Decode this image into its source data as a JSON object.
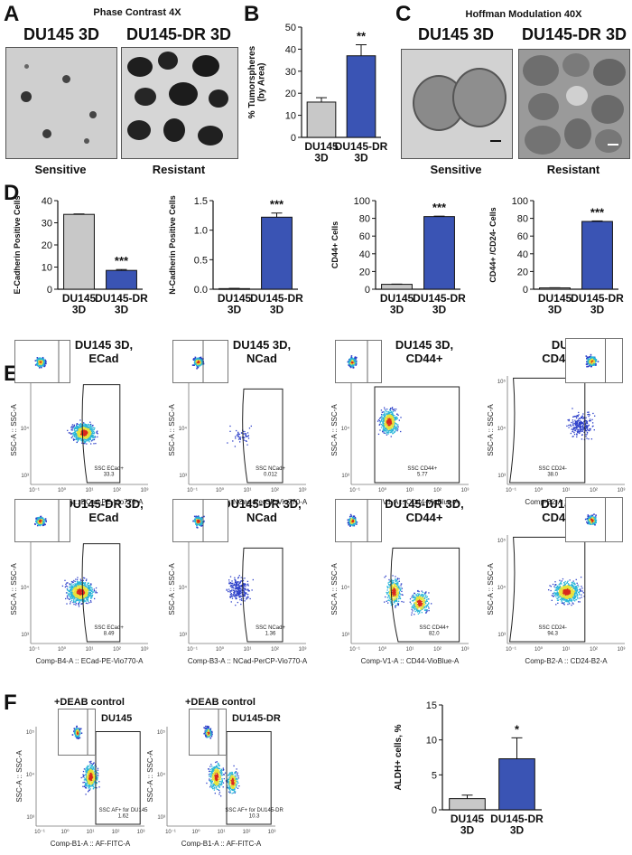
{
  "colors": {
    "gray_bar": "#c8c8c8",
    "blue_bar": "#3a54b4",
    "dot_blue": "#2c3fc9",
    "dot_cyan": "#28b5d8",
    "dot_yellow": "#e8e23a",
    "dot_red": "#d9281e"
  },
  "panelA": {
    "letter": "A",
    "title": "Phase Contrast 4X",
    "left_label": "DU145 3D",
    "right_label": "DU145-DR 3D",
    "left_caption": "Sensitive",
    "right_caption": "Resistant"
  },
  "panelB": {
    "letter": "B",
    "ylabel": "% Tumorspheres\n(by Area)",
    "sig": "**"
  },
  "panelC": {
    "letter": "C",
    "title": "Hoffman Modulation 40X",
    "left_label": "DU145 3D",
    "right_label": "DU145-DR 3D",
    "left_caption": "Sensitive",
    "right_caption": "Resistant"
  },
  "panelD": {
    "letter": "D"
  },
  "panelE": {
    "letter": "E",
    "row1": [
      {
        "title": "DU145 3D,\nECad",
        "gate": "SSC ECad+\n33.3",
        "xlabel": "Comp-B4-A :: ECad-PE-Vio770-A",
        "ylabel": "SSC-A :: SSC-A"
      },
      {
        "title": "DU145 3D,\nNCad",
        "gate": "SSC NCad+\n0.012",
        "xlabel": "Comp-B3-A :: NCad-PerCP-Vio770-A",
        "ylabel": "SSC-A :: SSC-A"
      },
      {
        "title": "DU145 3D,\nCD44+",
        "gate": "SSC CD44+\n5.77",
        "xlabel": "Comp-V1-A :: CD44-VioBlue-A",
        "ylabel": "SSC-A :: SSC-A"
      },
      {
        "title": "DU145 3D,\nCD44+/ CD24-",
        "gate": "SSC CD24-\n38.0",
        "xlabel": "Comp-B2-A :: CD24-B2-A",
        "ylabel": "SSC-A :: SSC-A"
      }
    ],
    "row2": [
      {
        "title": "DU145-DR 3D,\nECad",
        "gate": "SSC ECad+\n8.49",
        "xlabel": "Comp-B4-A :: ECad-PE-Vio770-A",
        "ylabel": "SSC-A :: SSC-A"
      },
      {
        "title": "DU145-DR 3D,\nNCad",
        "gate": "SSC NCad+\n1.36",
        "xlabel": "Comp-B3-A :: NCad-PerCP-Vio770-A",
        "ylabel": "SSC-A :: SSC-A"
      },
      {
        "title": "DU145-DR 3D,\nCD44+",
        "gate": "SSC CD44+\n82.0",
        "xlabel": "Comp-V1-A :: CD44-VioBlue-A",
        "ylabel": "SSC-A :: SSC-A"
      },
      {
        "title": "DU145-DR 3D,\nCD44+/ CD24-",
        "gate": "SSC CD24-\n94.3",
        "xlabel": "Comp-B2-A :: CD24-B2-A",
        "ylabel": "SSC-A :: SSC-A"
      }
    ]
  },
  "panelF": {
    "letter": "F",
    "plots": [
      {
        "control": "+DEAB control",
        "title": "DU145",
        "gate": "SSC AF+ for DU145\n1.62",
        "xlabel": "Comp-B1-A :: AF-FITC-A",
        "ylabel": "SSC-A :: SSC-A"
      },
      {
        "control": "+DEAB control",
        "title": "DU145-DR",
        "gate": "SSC AF+ for DU145-DR\n10.3",
        "xlabel": "Comp-B1-A :: AF-FITC-A",
        "ylabel": "SSC-A :: SSC-A"
      }
    ]
  },
  "tick_labels": {
    "decades": [
      "10⁻¹",
      "10⁰",
      "10¹",
      "10²",
      "10³"
    ],
    "ssc": [
      "10⁵",
      "10⁴",
      "10³"
    ]
  },
  "chart_data": [
    {
      "id": "B",
      "type": "bar",
      "categories": [
        "DU145\n3D",
        "DU145-DR\n3D"
      ],
      "values": [
        16,
        37
      ],
      "errors": [
        2,
        5
      ],
      "ylim": [
        0,
        50
      ],
      "yticks": [
        0,
        10,
        20,
        30,
        40,
        50
      ],
      "ylabel": "% Tumorspheres\n(by Area)",
      "annotations": [
        "",
        "**"
      ]
    },
    {
      "id": "D1",
      "type": "bar",
      "categories": [
        "DU145\n3D",
        "DU145-DR\n3D"
      ],
      "values": [
        33.8,
        8.5
      ],
      "errors": [
        0.2,
        0.4
      ],
      "ylim": [
        0,
        40
      ],
      "yticks": [
        0,
        10,
        20,
        30,
        40
      ],
      "ylabel": "E-Cadherin Positive Cells",
      "annotations": [
        "",
        "***"
      ]
    },
    {
      "id": "D2",
      "type": "bar",
      "categories": [
        "DU145\n3D",
        "DU145-DR\n3D"
      ],
      "values": [
        0.01,
        1.22
      ],
      "errors": [
        0.005,
        0.07
      ],
      "ylim": [
        0,
        1.5
      ],
      "yticks": [
        0.0,
        0.5,
        1.0,
        1.5
      ],
      "ylabel": "N-Cadherin Positive Cells",
      "annotations": [
        "",
        "***"
      ]
    },
    {
      "id": "D3",
      "type": "bar",
      "categories": [
        "DU145\n3D",
        "DU145-DR\n3D"
      ],
      "values": [
        5.5,
        82
      ],
      "errors": [
        0.3,
        0.5
      ],
      "ylim": [
        0,
        100
      ],
      "yticks": [
        0,
        20,
        40,
        60,
        80,
        100
      ],
      "ylabel": "CD44+ Cells",
      "annotations": [
        "",
        "***"
      ]
    },
    {
      "id": "D4",
      "type": "bar",
      "categories": [
        "DU145\n3D",
        "DU145-DR\n3D"
      ],
      "values": [
        1.5,
        76.5
      ],
      "errors": [
        0.2,
        0.6
      ],
      "ylim": [
        0,
        100
      ],
      "yticks": [
        0,
        20,
        40,
        60,
        80,
        100
      ],
      "ylabel": "CD44+ /CD24- Cells",
      "annotations": [
        "",
        "***"
      ]
    },
    {
      "id": "F",
      "type": "bar",
      "categories": [
        "DU145\n3D",
        "DU145-DR\n3D"
      ],
      "values": [
        1.6,
        7.3
      ],
      "errors": [
        0.5,
        3.0
      ],
      "ylim": [
        0,
        15
      ],
      "yticks": [
        0,
        5,
        10,
        15
      ],
      "ylabel": "ALDH+ cells, %",
      "annotations": [
        "",
        "*"
      ]
    }
  ]
}
